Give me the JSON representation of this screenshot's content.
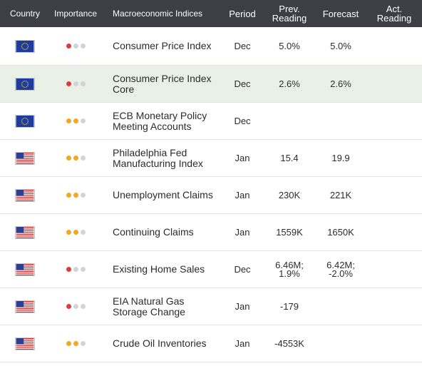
{
  "header": {
    "country": "Country",
    "importance": "Importance",
    "indices": "Macroeconomic Indices",
    "period": "Period",
    "prev": "Prev.\nReading",
    "forecast": "Forecast",
    "actual": "Act.\nReading"
  },
  "colors": {
    "header_bg": "#3c3f46",
    "highlight_row": "#e9f1e6",
    "importance_low": "#e03a3a",
    "importance_medium": "#f5a623",
    "dot_inactive": "#d4d4d4"
  },
  "rows": [
    {
      "flag": "eu-flag-icon",
      "importance": 1,
      "name": "Consumer Price Index",
      "period": "Dec",
      "prev": "5.0%",
      "forecast": "5.0%",
      "actual": ""
    },
    {
      "flag": "eu-flag-icon",
      "importance": 1,
      "name": "Consumer Price Index Core",
      "period": "Dec",
      "prev": "2.6%",
      "forecast": "2.6%",
      "actual": ""
    },
    {
      "flag": "eu-flag-icon",
      "importance": 2,
      "name": "ECB Monetary Policy Meeting Accounts",
      "period": "Dec",
      "prev": "",
      "forecast": "",
      "actual": ""
    },
    {
      "flag": "us-flag-icon",
      "importance": 2,
      "name": "Philadelphia Fed Manufacturing Index",
      "period": "Jan",
      "prev": "15.4",
      "forecast": "19.9",
      "actual": ""
    },
    {
      "flag": "us-flag-icon",
      "importance": 2,
      "name": "Unemployment Claims",
      "period": "Jan",
      "prev": "230K",
      "forecast": "221K",
      "actual": ""
    },
    {
      "flag": "us-flag-icon",
      "importance": 2,
      "name": "Continuing Claims",
      "period": "Jan",
      "prev": "1559K",
      "forecast": "1650K",
      "actual": ""
    },
    {
      "flag": "us-flag-icon",
      "importance": 1,
      "name": "Existing Home Sales",
      "period": "Dec",
      "prev": "6.46M;\n1.9%",
      "forecast": "6.42M;\n-2.0%",
      "actual": ""
    },
    {
      "flag": "us-flag-icon",
      "importance": 1,
      "name": "EIA Natural Gas Storage Change",
      "period": "Jan",
      "prev": "-179",
      "forecast": "",
      "actual": ""
    },
    {
      "flag": "us-flag-icon",
      "importance": 2,
      "name": "Crude Oil Inventories",
      "period": "Jan",
      "prev": "-4553K",
      "forecast": "",
      "actual": ""
    }
  ]
}
